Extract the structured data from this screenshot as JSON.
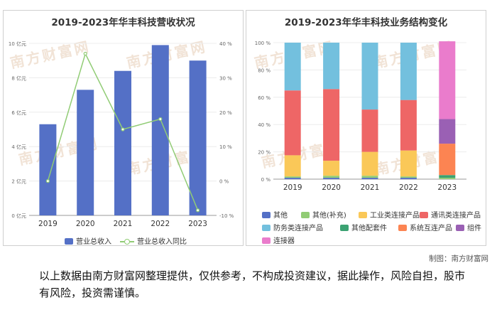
{
  "chart_data": [
    {
      "type": "bar+line",
      "title": "2019-2023年华丰科技营收状况",
      "categories": [
        "2019",
        "2020",
        "2021",
        "2022",
        "2023"
      ],
      "series": [
        {
          "name": "营业总收入",
          "type": "bar",
          "axis": "left",
          "unit": "亿元",
          "values": [
            5.3,
            7.3,
            8.4,
            9.9,
            9.0
          ]
        },
        {
          "name": "营业总收入同比",
          "type": "line",
          "axis": "right",
          "unit": "%",
          "values": [
            0,
            37,
            15,
            18,
            -8.5
          ]
        }
      ],
      "y_left": {
        "min": 0,
        "max": 10,
        "ticks": [
          "0 亿元",
          "2 亿元",
          "4 亿元",
          "6 亿元",
          "8 亿元",
          "10 亿元"
        ]
      },
      "y_right": {
        "min": -10,
        "max": 40,
        "ticks": [
          "-10 %",
          "0 %",
          "10 %",
          "20 %",
          "30 %",
          "40 %"
        ]
      },
      "legend_position": "bottom",
      "colors": {
        "bar": "#5470c6",
        "line": "#91cc75"
      }
    },
    {
      "type": "stacked-bar-100",
      "title": "2019-2023年华丰科技业务结构变化",
      "categories": [
        "2019",
        "2020",
        "2021",
        "2022",
        "2023"
      ],
      "series": [
        {
          "name": "其他",
          "color": "#5470c6",
          "values": [
            1,
            1,
            1,
            1,
            0
          ]
        },
        {
          "name": "其他(补充)",
          "color": "#91cc75",
          "values": [
            1,
            1.5,
            1.5,
            1,
            1
          ]
        },
        {
          "name": "工业类连接产品",
          "color": "#fac858",
          "values": [
            15.5,
            11,
            17.5,
            19,
            0
          ]
        },
        {
          "name": "通讯类连接产品",
          "color": "#ee6666",
          "values": [
            47.5,
            52.5,
            31,
            37,
            0
          ]
        },
        {
          "name": "防务类连接产品",
          "color": "#73c0de",
          "values": [
            35,
            34,
            49,
            42,
            0
          ]
        },
        {
          "name": "其他配套件",
          "color": "#3ba272",
          "values": [
            0,
            0,
            0,
            0,
            2
          ]
        },
        {
          "name": "系统互连产品",
          "color": "#fc8452",
          "values": [
            0,
            0,
            0,
            0,
            23
          ]
        },
        {
          "name": "组件",
          "color": "#9a60b4",
          "values": [
            0,
            0,
            0,
            0,
            18
          ]
        },
        {
          "name": "连接器",
          "color": "#ea7ccc",
          "values": [
            0,
            0,
            0,
            0,
            57
          ]
        }
      ],
      "y": {
        "min": 0,
        "max": 100,
        "ticks": [
          "0 %",
          "20 %",
          "40 %",
          "60 %",
          "80 %",
          "100 %"
        ]
      },
      "legend_position": "bottom"
    }
  ],
  "watermark": "南方财富网",
  "credit": "制图：南方财富网",
  "disclaimer": "以上数据由南方财富网整理提供，仅供参考，不构成投资建议，据此操作，风险自担，股市有风险，投资需谨慎。"
}
